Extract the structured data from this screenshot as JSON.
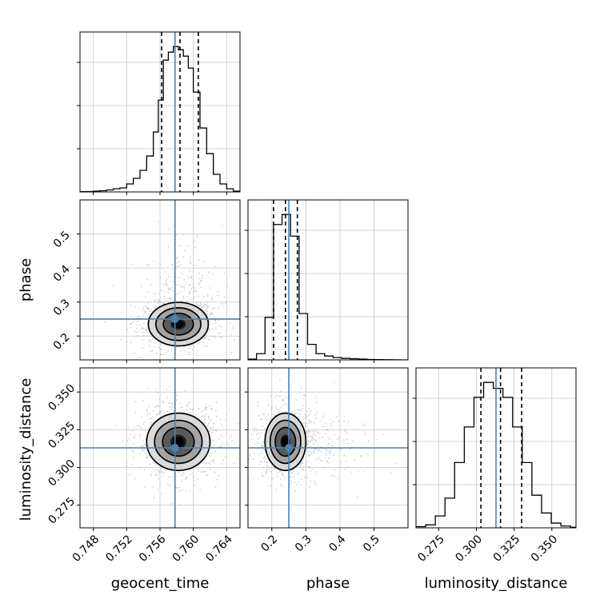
{
  "chart_data": {
    "type": "corner",
    "parameters": [
      "geocent_time",
      "phase",
      "luminosity_distance"
    ],
    "axis_labels": [
      "geocent_time",
      "phase",
      "luminosity_distance"
    ],
    "ranges": [
      [
        0.7464,
        0.7656
      ],
      [
        0.13,
        0.6
      ],
      [
        0.26,
        0.366
      ]
    ],
    "ticks": [
      [
        "0.748",
        "0.752",
        "0.756",
        "0.760",
        "0.764"
      ],
      [
        "0.2",
        "0.3",
        "0.4",
        "0.5"
      ],
      [
        "0.275",
        "0.300",
        "0.325",
        "0.350"
      ]
    ],
    "tick_values": [
      [
        0.748,
        0.752,
        0.756,
        0.76,
        0.764
      ],
      [
        0.2,
        0.3,
        0.4,
        0.5
      ],
      [
        0.275,
        0.3,
        0.325,
        0.35
      ]
    ],
    "truths": [
      0.7578,
      0.25,
      0.313
    ],
    "quantiles": [
      [
        0.7562,
        0.7584,
        0.7606
      ],
      [
        0.205,
        0.24,
        0.275
      ],
      [
        0.303,
        0.316,
        0.33
      ]
    ],
    "histograms": [
      {
        "parameter": "geocent_time",
        "bin_edges": [
          0.7464,
          0.7472,
          0.748,
          0.7488,
          0.7496,
          0.7504,
          0.7512,
          0.752,
          0.7528,
          0.7536,
          0.7544,
          0.7552,
          0.7558,
          0.7564,
          0.757,
          0.7576,
          0.7582,
          0.7588,
          0.7594,
          0.76,
          0.7608,
          0.7616,
          0.7624,
          0.7632,
          0.764,
          0.7648,
          0.7656
        ],
        "counts": [
          0.3,
          0.5,
          1,
          1.5,
          2.5,
          4,
          5,
          10,
          17,
          27,
          45,
          75,
          115,
          165,
          175,
          182,
          178,
          170,
          155,
          125,
          80,
          48,
          22,
          10,
          4,
          1
        ]
      },
      {
        "parameter": "phase",
        "bin_edges": [
          0.13,
          0.155,
          0.18,
          0.205,
          0.23,
          0.255,
          0.28,
          0.305,
          0.33,
          0.355,
          0.38,
          0.405,
          0.43,
          0.455,
          0.48,
          0.505,
          0.53,
          0.555,
          0.58,
          0.6
        ],
        "counts": [
          1,
          8,
          55,
          175,
          188,
          160,
          60,
          20,
          8,
          5,
          3,
          2,
          1.5,
          1,
          0.5,
          0.3,
          0.2,
          0.1,
          0
        ]
      },
      {
        "parameter": "luminosity_distance",
        "bin_edges": [
          0.26,
          0.2664,
          0.2728,
          0.2792,
          0.2856,
          0.292,
          0.2984,
          0.3048,
          0.3112,
          0.3176,
          0.324,
          0.3304,
          0.3368,
          0.3432,
          0.3496,
          0.356,
          0.3624,
          0.366
        ],
        "counts": [
          2,
          5,
          20,
          50,
          110,
          170,
          220,
          245,
          235,
          220,
          170,
          110,
          55,
          25,
          8,
          3,
          1
        ]
      }
    ],
    "contours": [
      {
        "x_param": "geocent_time",
        "y_param": "phase",
        "center": [
          0.7582,
          0.235
        ],
        "sigma": [
          0.0018,
          0.032
        ],
        "levels": [
          0.5,
          1.0,
          1.5,
          2.0
        ],
        "fill_levels": [
          "#111111",
          "#4d4d4d",
          "#9a9a9a",
          "#d6d6d6"
        ]
      },
      {
        "x_param": "geocent_time",
        "y_param": "luminosity_distance",
        "center": [
          0.7582,
          0.317
        ],
        "sigma": [
          0.0019,
          0.0095
        ],
        "levels": [
          0.5,
          1.0,
          1.5,
          2.0
        ],
        "fill_levels": [
          "#111111",
          "#4d4d4d",
          "#9a9a9a",
          "#d6d6d6"
        ]
      },
      {
        "x_param": "phase",
        "y_param": "luminosity_distance",
        "center": [
          0.24,
          0.317
        ],
        "sigma": [
          0.03,
          0.0095
        ],
        "levels": [
          0.5,
          1.0,
          1.5,
          2.0
        ],
        "fill_levels": [
          "#111111",
          "#4d4d4d",
          "#9a9a9a",
          "#d6d6d6"
        ]
      }
    ],
    "colors": {
      "truth": "#4682b4",
      "contour": "#000000",
      "quantile": "#000000",
      "grid": "#c8c8c8"
    },
    "grid": true
  }
}
